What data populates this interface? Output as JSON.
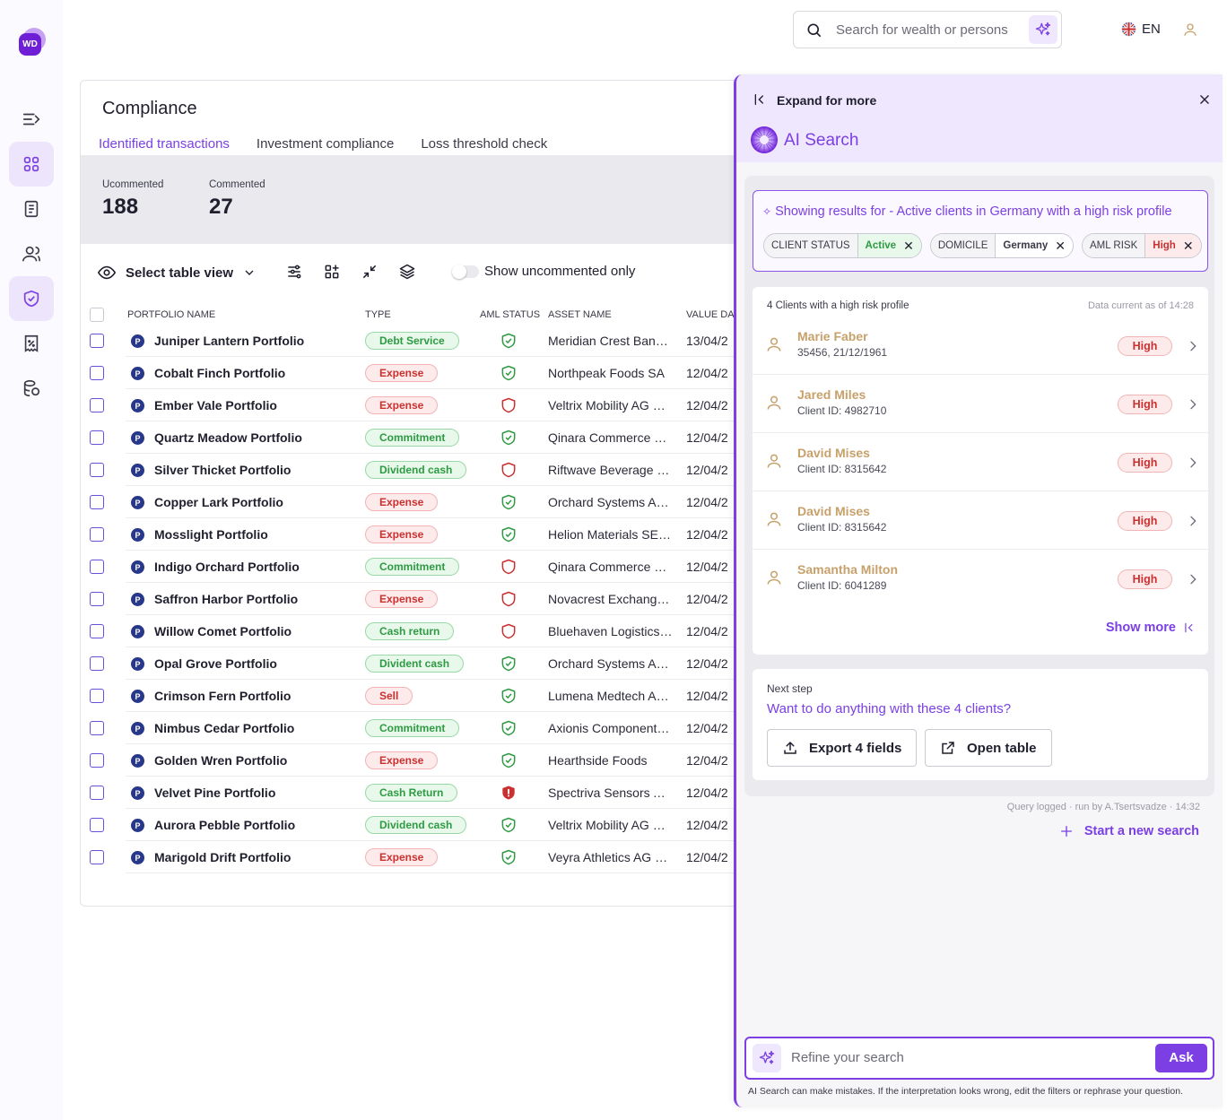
{
  "app": {
    "logo_text": "WD"
  },
  "topbar": {
    "search_placeholder": "Search for wealth or persons",
    "language": "EN"
  },
  "page": {
    "title": "Compliance",
    "tabs": [
      "Identified transactions",
      "Investment compliance",
      "Loss threshold check"
    ],
    "active_tab": 0,
    "stats": [
      {
        "label": "Ucommented",
        "value": "188"
      },
      {
        "label": "Commented",
        "value": "27"
      }
    ],
    "toolbar": {
      "view_label": "Select table view",
      "toggle_label": "Show uncommented only",
      "toggle_on": false
    },
    "columns": [
      "PORTFOLIO NAME",
      "TYPE",
      "AML STATUS",
      "ASSET NAME",
      "VALUE DAT"
    ],
    "rows": [
      {
        "badge": "P",
        "name": "Juniper Lantern Portfolio",
        "type": "Debt Service",
        "type_color": "green",
        "aml": "ok",
        "asset": "Meridian Crest Bank…",
        "date": "13/04/2"
      },
      {
        "badge": "P",
        "name": "Cobalt Finch Portfolio",
        "type": "Expense",
        "type_color": "red",
        "aml": "ok",
        "asset": "Northpeak Foods SA",
        "date": "12/04/2"
      },
      {
        "badge": "P",
        "name": "Ember Vale Portfolio",
        "type": "Expense",
        "type_color": "red",
        "aml": "risk",
        "asset": "Veltrix Mobility AG N…",
        "date": "12/04/2"
      },
      {
        "badge": "P",
        "name": "Quartz Meadow Portfolio",
        "type": "Commitment",
        "type_color": "green",
        "aml": "ok",
        "asset": "Qinara Commerce H…",
        "date": "12/04/2"
      },
      {
        "badge": "P",
        "name": "Silver Thicket Portfolio",
        "type": "Dividend cash",
        "type_color": "green",
        "aml": "risk",
        "asset": "Riftwave Beverage C…",
        "date": "12/04/2"
      },
      {
        "badge": "P",
        "name": "Copper Lark Portfolio",
        "type": "Expense",
        "type_color": "red",
        "aml": "ok",
        "asset": "Orchard Systems Ak…",
        "date": "12/04/2"
      },
      {
        "badge": "P",
        "name": "Mosslight Portfolio",
        "type": "Expense",
        "type_color": "red",
        "aml": "ok",
        "asset": "Helion Materials SE…",
        "date": "12/04/2"
      },
      {
        "badge": "P",
        "name": "Indigo Orchard Portfolio",
        "type": "Commitment",
        "type_color": "green",
        "aml": "risk",
        "asset": "Qinara Commerce H…",
        "date": "12/04/2"
      },
      {
        "badge": "P",
        "name": "Saffron Harbor Portfolio",
        "type": "Expense",
        "type_color": "red",
        "aml": "risk",
        "asset": "Novacrest Exchange…",
        "date": "12/04/2"
      },
      {
        "badge": "P",
        "name": "Willow Comet Portfolio",
        "type": "Cash return",
        "type_color": "green",
        "aml": "risk",
        "asset": "Bluehaven Logistics…",
        "date": "12/04/2"
      },
      {
        "badge": "P",
        "name": "Opal Grove Portfolio",
        "type": "Divident cash",
        "type_color": "green",
        "aml": "ok",
        "asset": "Orchard Systems Ak…",
        "date": "12/04/2"
      },
      {
        "badge": "P",
        "name": "Crimson Fern Portfolio",
        "type": "Sell",
        "type_color": "red",
        "aml": "ok",
        "asset": "Lumena Medtech A…",
        "date": "12/04/2"
      },
      {
        "badge": "P",
        "name": "Nimbus Cedar Portfolio",
        "type": "Commitment",
        "type_color": "green",
        "aml": "ok",
        "asset": "Axionis Components…",
        "date": "12/04/2"
      },
      {
        "badge": "P",
        "name": "Golden Wren Portfolio",
        "type": "Expense",
        "type_color": "red",
        "aml": "ok",
        "asset": "Hearthside Foods",
        "date": "12/04/2"
      },
      {
        "badge": "P",
        "name": "Velvet Pine Portfolio",
        "type": "Cash Return",
        "type_color": "green",
        "aml": "alert",
        "asset": "Spectriva Sensors A…",
        "date": "12/04/2"
      },
      {
        "badge": "P",
        "name": "Aurora Pebble Portfolio",
        "type": "Dividend cash",
        "type_color": "green",
        "aml": "ok",
        "asset": "Veltrix Mobility AG N…",
        "date": "12/04/2"
      },
      {
        "badge": "P",
        "name": "Marigold Drift Portfolio",
        "type": "Expense",
        "type_color": "red",
        "aml": "ok",
        "asset": "Veyra Athletics AG N…",
        "date": "12/04/2"
      }
    ]
  },
  "ai_panel": {
    "expand_label": "Expand for more",
    "title": "AI Search",
    "filter_title": "Showing results for - Active clients in Germany with a high risk profile",
    "filters": [
      {
        "key": "CLIENT STATUS",
        "value": "Active",
        "tone": "active"
      },
      {
        "key": "DOMICILE",
        "value": "Germany",
        "tone": "neutral"
      },
      {
        "key": "AML RISK",
        "value": "High",
        "tone": "high"
      }
    ],
    "results_heading": "4 Clients with a high risk profile",
    "data_current": "Data current as of 14:28",
    "clients": [
      {
        "name": "Marie Faber",
        "detail": "35456, 21/12/1961",
        "risk": "High"
      },
      {
        "name": "Jared Miles",
        "detail": "Client ID: 4982710",
        "risk": "High"
      },
      {
        "name": "David Mises",
        "detail": "Client ID: 8315642",
        "risk": "High"
      },
      {
        "name": "David Mises",
        "detail": "Client ID: 8315642",
        "risk": "High"
      },
      {
        "name": "Samantha Milton",
        "detail": "Client ID: 6041289",
        "risk": "High"
      }
    ],
    "show_more": "Show more",
    "next_step_label": "Next step",
    "next_step_question": "Want to do anything with these 4 clients?",
    "export_label": "Export 4 fields",
    "open_table_label": "Open table",
    "query_logged": "Query logged · run by A.Tsertsvadze · 14:32",
    "new_search": "Start a new search",
    "refine_placeholder": "Refine your search",
    "ask_label": "Ask",
    "disclaimer": "AI Search can make mistakes. If the interpretation looks wrong, edit the filters or rephrase your question."
  },
  "colors": {
    "accent": "#7b3fe4",
    "success": "#2f9a44",
    "danger": "#c93030",
    "client_name": "#c7a06a"
  }
}
